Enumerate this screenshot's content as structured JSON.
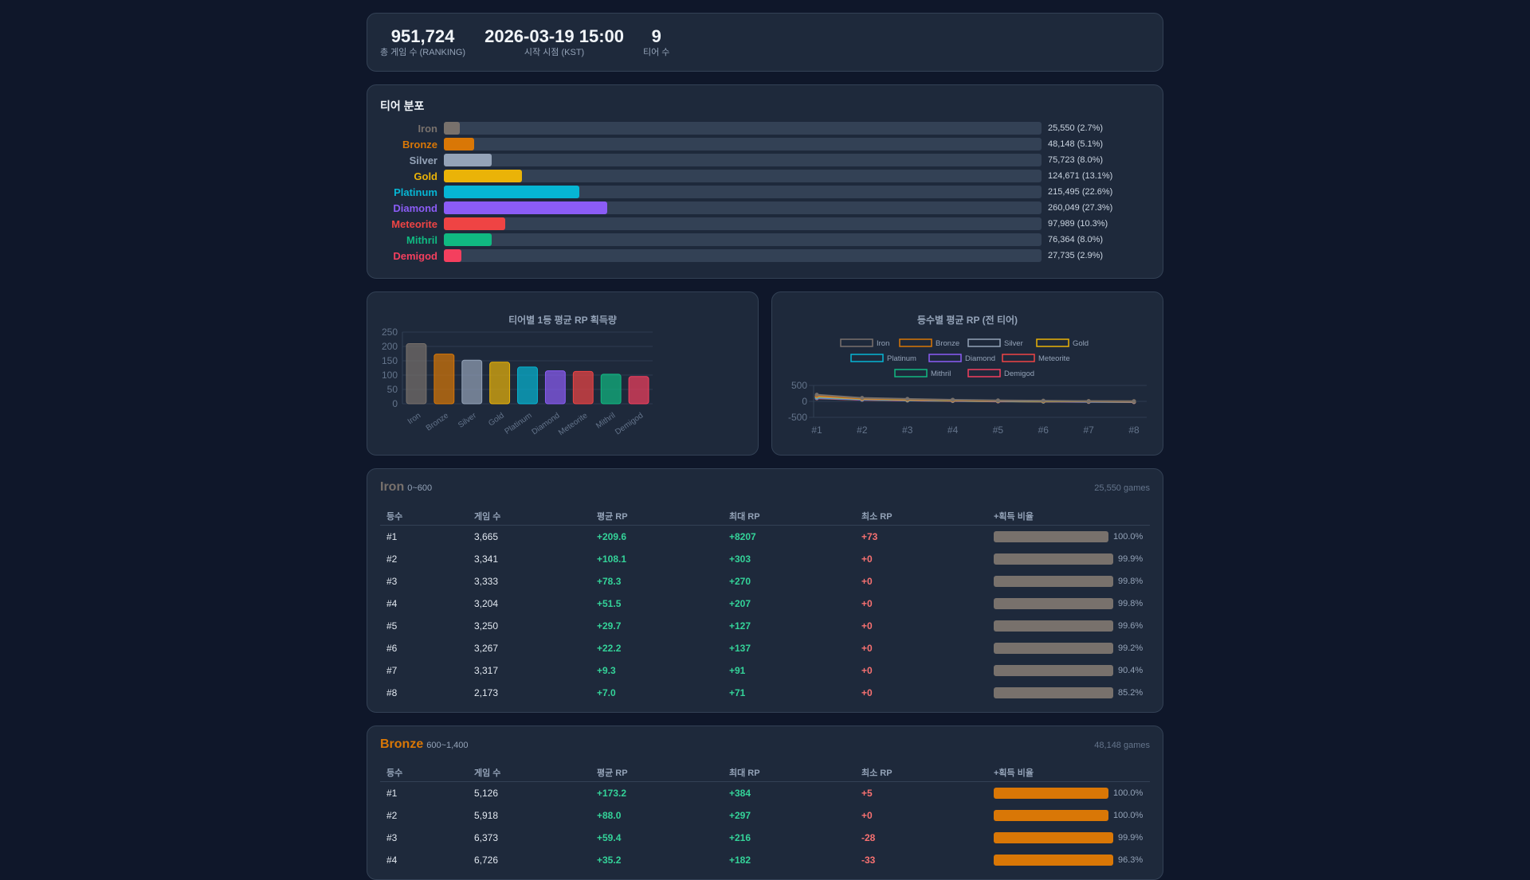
{
  "summary": [
    {
      "value": "951,724",
      "label": "총 게임 수 (RANKING)"
    },
    {
      "value": "2026-03-19 15:00",
      "label": "시작 시점 (KST)"
    },
    {
      "value": "9",
      "label": "티어 수"
    }
  ],
  "distribution": {
    "title": "티어 분포",
    "rows": [
      {
        "name": "Iron",
        "color": "#78716c",
        "label_color": "#78716c",
        "pct": 2.7,
        "value": "25,550 (2.7%)"
      },
      {
        "name": "Bronze",
        "color": "#d97706",
        "label_color": "#d97706",
        "pct": 5.1,
        "value": "48,148 (5.1%)"
      },
      {
        "name": "Silver",
        "color": "#94a3b8",
        "label_color": "#94a3b8",
        "pct": 8.0,
        "value": "75,723 (8.0%)"
      },
      {
        "name": "Gold",
        "color": "#eab308",
        "label_color": "#eab308",
        "pct": 13.1,
        "value": "124,671 (13.1%)"
      },
      {
        "name": "Platinum",
        "color": "#06b6d4",
        "label_color": "#06b6d4",
        "pct": 22.6,
        "value": "215,495 (22.6%)"
      },
      {
        "name": "Diamond",
        "color": "#8b5cf6",
        "label_color": "#8b5cf6",
        "pct": 27.3,
        "value": "260,049 (27.3%)"
      },
      {
        "name": "Meteorite",
        "color": "#ef4444",
        "label_color": "#ef4444",
        "pct": 10.3,
        "value": "97,989 (10.3%)"
      },
      {
        "name": "Mithril",
        "color": "#10b981",
        "label_color": "#10b981",
        "pct": 8.0,
        "value": "76,364 (8.0%)"
      },
      {
        "name": "Demigod",
        "color": "#f43f5e",
        "label_color": "#f43f5e",
        "pct": 2.9,
        "value": "27,735 (2.9%)"
      }
    ]
  },
  "chart_data": [
    {
      "type": "bar",
      "title": "티어별 1등 평균 RP 획득량",
      "categories": [
        "Iron",
        "Bronze",
        "Silver",
        "Gold",
        "Platinum",
        "Diamond",
        "Meteorite",
        "Mithril",
        "Demigod"
      ],
      "values": [
        209.6,
        173.2,
        152,
        145,
        128,
        115,
        113,
        103,
        95
      ],
      "colors": [
        "#78716c",
        "#d97706",
        "#94a3b8",
        "#eab308",
        "#06b6d4",
        "#8b5cf6",
        "#ef4444",
        "#10b981",
        "#f43f5e"
      ],
      "ylim": [
        0,
        250
      ],
      "yticks": [
        0,
        50,
        100,
        150,
        200,
        250
      ],
      "xlabel": "",
      "ylabel": "",
      "grid": true,
      "legend": false
    },
    {
      "type": "line",
      "title": "등수별 평균 RP (전 티어)",
      "x": [
        "#1",
        "#2",
        "#3",
        "#4",
        "#5",
        "#6",
        "#7",
        "#8"
      ],
      "ylim": [
        -500,
        500
      ],
      "yticks": [
        500,
        0,
        -500
      ],
      "legend_position": "top",
      "series": [
        {
          "name": "Iron",
          "color": "#78716c",
          "values": [
            209.6,
            108.1,
            78.3,
            51.5,
            29.7,
            22.2,
            9.3,
            7.0
          ]
        },
        {
          "name": "Bronze",
          "color": "#d97706",
          "values": [
            173.2,
            88.0,
            59.4,
            35.2,
            20,
            12,
            5,
            2
          ]
        },
        {
          "name": "Silver",
          "color": "#94a3b8",
          "values": [
            152,
            80,
            52,
            30,
            15,
            8,
            2,
            -2
          ]
        },
        {
          "name": "Gold",
          "color": "#eab308",
          "values": [
            145,
            75,
            48,
            28,
            12,
            5,
            0,
            -5
          ]
        },
        {
          "name": "Platinum",
          "color": "#06b6d4",
          "values": [
            128,
            68,
            42,
            22,
            8,
            0,
            -5,
            -10
          ]
        },
        {
          "name": "Diamond",
          "color": "#8b5cf6",
          "values": [
            115,
            60,
            36,
            18,
            4,
            -4,
            -10,
            -15
          ]
        },
        {
          "name": "Meteorite",
          "color": "#ef4444",
          "values": [
            113,
            58,
            34,
            15,
            2,
            -6,
            -12,
            -18
          ]
        },
        {
          "name": "Mithril",
          "color": "#10b981",
          "values": [
            103,
            52,
            30,
            12,
            0,
            -8,
            -15,
            -20
          ]
        },
        {
          "name": "Demigod",
          "color": "#f43f5e",
          "values": [
            95,
            48,
            26,
            10,
            -2,
            -10,
            -18,
            -24
          ]
        }
      ]
    }
  ],
  "table_headers": [
    "등수",
    "게임 수",
    "평균 RP",
    "최대 RP",
    "최소 RP",
    "+획득 비율"
  ],
  "tiers": [
    {
      "name": "Iron",
      "range": "0~600",
      "games": "25,550 games",
      "color": "#78716c",
      "bar_color": "#78716c",
      "rows": [
        {
          "rank": "#1",
          "games": "3,665",
          "avg": "+209.6",
          "max": "+8207",
          "min": "+73",
          "ratio": "100.0%",
          "pct": 100.0
        },
        {
          "rank": "#2",
          "games": "3,341",
          "avg": "+108.1",
          "max": "+303",
          "min": "+0",
          "ratio": "99.9%",
          "pct": 99.9
        },
        {
          "rank": "#3",
          "games": "3,333",
          "avg": "+78.3",
          "max": "+270",
          "min": "+0",
          "ratio": "99.8%",
          "pct": 99.8
        },
        {
          "rank": "#4",
          "games": "3,204",
          "avg": "+51.5",
          "max": "+207",
          "min": "+0",
          "ratio": "99.8%",
          "pct": 99.8
        },
        {
          "rank": "#5",
          "games": "3,250",
          "avg": "+29.7",
          "max": "+127",
          "min": "+0",
          "ratio": "99.6%",
          "pct": 99.6
        },
        {
          "rank": "#6",
          "games": "3,267",
          "avg": "+22.2",
          "max": "+137",
          "min": "+0",
          "ratio": "99.2%",
          "pct": 99.2
        },
        {
          "rank": "#7",
          "games": "3,317",
          "avg": "+9.3",
          "max": "+91",
          "min": "+0",
          "ratio": "90.4%",
          "pct": 90.4
        },
        {
          "rank": "#8",
          "games": "2,173",
          "avg": "+7.0",
          "max": "+71",
          "min": "+0",
          "ratio": "85.2%",
          "pct": 85.2
        }
      ]
    },
    {
      "name": "Bronze",
      "range": "600~1,400",
      "games": "48,148 games",
      "color": "#d97706",
      "bar_color": "#d97706",
      "rows": [
        {
          "rank": "#1",
          "games": "5,126",
          "avg": "+173.2",
          "max": "+384",
          "min": "+5",
          "ratio": "100.0%",
          "pct": 100.0
        },
        {
          "rank": "#2",
          "games": "5,918",
          "avg": "+88.0",
          "max": "+297",
          "min": "+0",
          "ratio": "100.0%",
          "pct": 100.0
        },
        {
          "rank": "#3",
          "games": "6,373",
          "avg": "+59.4",
          "max": "+216",
          "min": "-28",
          "ratio": "99.9%",
          "pct": 99.9
        },
        {
          "rank": "#4",
          "games": "6,726",
          "avg": "+35.2",
          "max": "+182",
          "min": "-33",
          "ratio": "96.3%",
          "pct": 96.3
        }
      ]
    }
  ]
}
